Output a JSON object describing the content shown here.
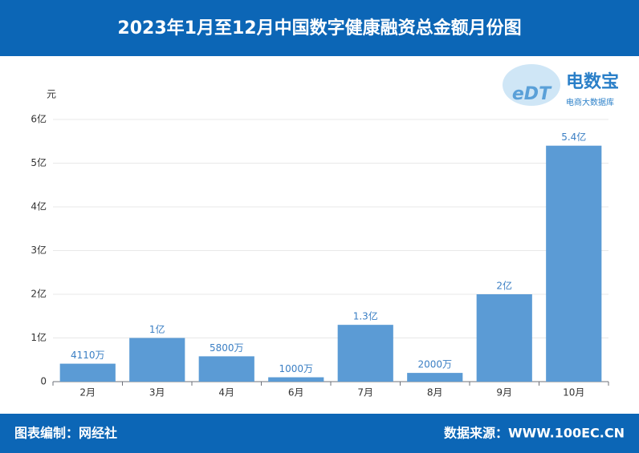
{
  "chart_data": {
    "type": "bar",
    "title": "2023年1月至12月中国数字健康融资总金额月份图",
    "y_label": "元",
    "categories": [
      "2月",
      "3月",
      "4月",
      "6月",
      "7月",
      "8月",
      "9月",
      "10月"
    ],
    "values": [
      41100000,
      100000000,
      58000000,
      10000000,
      130000000,
      20000000,
      200000000,
      540000000
    ],
    "value_labels": [
      "4110万",
      "1亿",
      "5800万",
      "1000万",
      "1.3亿",
      "2000万",
      "2亿",
      "5.4亿"
    ],
    "color": "#5b9bd5",
    "ylim": [
      0,
      600000000
    ],
    "yticks": [
      0,
      {
        "value": 100000000,
        "label": "1亿"
      },
      {
        "value": 200000000,
        "label": "2亿"
      },
      {
        "value": 300000000,
        "label": "3亿"
      },
      {
        "value": 400000000,
        "label": "4亿"
      },
      {
        "value": 500000000,
        "label": "5亿"
      },
      {
        "value": 600000000,
        "label": "6亿"
      }
    ],
    "grid": true
  },
  "logo": {
    "name": "电数宝",
    "subtitle": "电商大数据库",
    "mark": "eDT"
  },
  "footer": {
    "left": "图表编制：网经社",
    "right": "数据来源：WWW.100EC.CN"
  }
}
